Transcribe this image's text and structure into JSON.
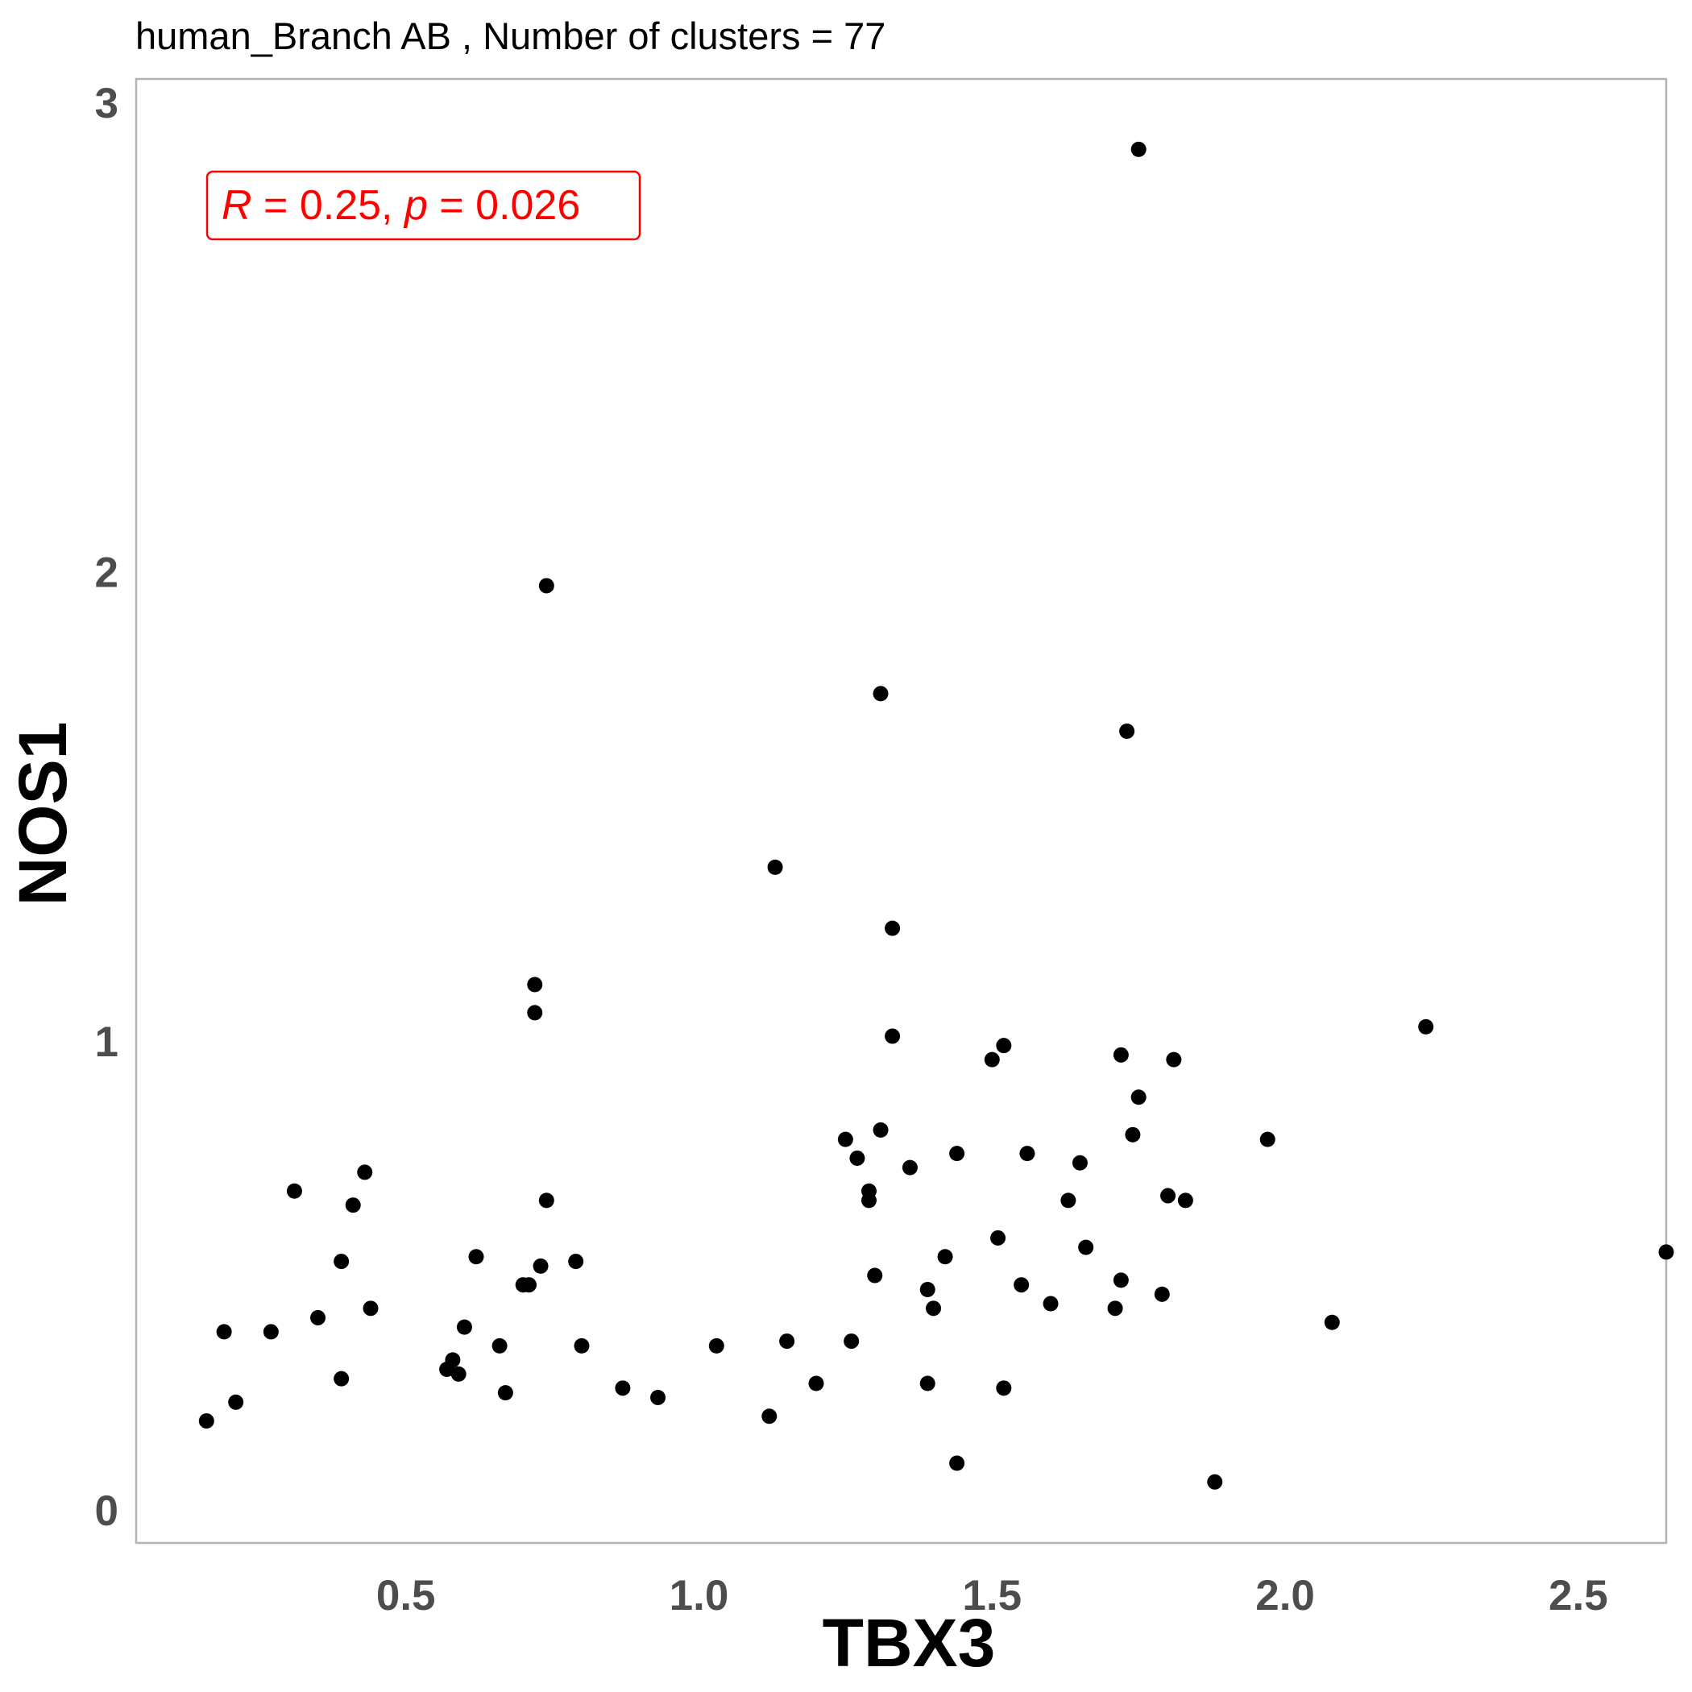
{
  "chart_data": {
    "type": "scatter",
    "title": "human_Branch AB , Number of clusters =  77",
    "xlabel": "TBX3",
    "ylabel": "NOS1",
    "xlim": [
      0.04,
      2.65
    ],
    "ylim": [
      -0.07,
      3.05
    ],
    "xticks": [
      0.5,
      1.0,
      1.5,
      2.0,
      2.5
    ],
    "xtick_labels": [
      "0.5",
      "1.0",
      "1.5",
      "2.0",
      "2.5"
    ],
    "yticks": [
      0,
      1,
      2,
      3
    ],
    "ytick_labels": [
      "0",
      "1",
      "2",
      "3"
    ],
    "grid": false,
    "point_color": "#000000",
    "panel_border_color": "#b3b3b3",
    "annotation": {
      "R_label": "R",
      "R_value": " = 0.25, ",
      "p_label": "p",
      "p_value": " = 0.026",
      "color": "#ff0000"
    },
    "points": [
      {
        "x": 0.16,
        "y": 0.19
      },
      {
        "x": 0.19,
        "y": 0.38
      },
      {
        "x": 0.21,
        "y": 0.23
      },
      {
        "x": 0.27,
        "y": 0.38
      },
      {
        "x": 0.31,
        "y": 0.68
      },
      {
        "x": 0.35,
        "y": 0.41
      },
      {
        "x": 0.39,
        "y": 0.28
      },
      {
        "x": 0.39,
        "y": 0.53
      },
      {
        "x": 0.41,
        "y": 0.65
      },
      {
        "x": 0.43,
        "y": 0.72
      },
      {
        "x": 0.44,
        "y": 0.43
      },
      {
        "x": 0.57,
        "y": 0.3
      },
      {
        "x": 0.58,
        "y": 0.32
      },
      {
        "x": 0.59,
        "y": 0.29
      },
      {
        "x": 0.6,
        "y": 0.39
      },
      {
        "x": 0.62,
        "y": 0.54
      },
      {
        "x": 0.66,
        "y": 0.35
      },
      {
        "x": 0.67,
        "y": 0.25
      },
      {
        "x": 0.7,
        "y": 0.48
      },
      {
        "x": 0.71,
        "y": 0.48
      },
      {
        "x": 0.72,
        "y": 1.12
      },
      {
        "x": 0.72,
        "y": 1.06
      },
      {
        "x": 0.73,
        "y": 0.52
      },
      {
        "x": 0.74,
        "y": 1.97
      },
      {
        "x": 0.74,
        "y": 0.66
      },
      {
        "x": 0.79,
        "y": 0.53
      },
      {
        "x": 0.8,
        "y": 0.35
      },
      {
        "x": 0.87,
        "y": 0.26
      },
      {
        "x": 0.93,
        "y": 0.24
      },
      {
        "x": 1.03,
        "y": 0.35
      },
      {
        "x": 1.12,
        "y": 0.2
      },
      {
        "x": 1.13,
        "y": 1.37
      },
      {
        "x": 1.15,
        "y": 0.36
      },
      {
        "x": 1.2,
        "y": 0.27
      },
      {
        "x": 1.25,
        "y": 0.79
      },
      {
        "x": 1.26,
        "y": 0.36
      },
      {
        "x": 1.27,
        "y": 0.75
      },
      {
        "x": 1.29,
        "y": 0.66
      },
      {
        "x": 1.29,
        "y": 0.68
      },
      {
        "x": 1.3,
        "y": 0.5
      },
      {
        "x": 1.31,
        "y": 1.74
      },
      {
        "x": 1.31,
        "y": 0.81
      },
      {
        "x": 1.33,
        "y": 1.24
      },
      {
        "x": 1.33,
        "y": 1.01
      },
      {
        "x": 1.36,
        "y": 0.73
      },
      {
        "x": 1.39,
        "y": 0.27
      },
      {
        "x": 1.39,
        "y": 0.47
      },
      {
        "x": 1.4,
        "y": 0.43
      },
      {
        "x": 1.42,
        "y": 0.54
      },
      {
        "x": 1.44,
        "y": 0.1
      },
      {
        "x": 1.44,
        "y": 0.76
      },
      {
        "x": 1.5,
        "y": 0.96
      },
      {
        "x": 1.51,
        "y": 0.58
      },
      {
        "x": 1.52,
        "y": 0.26
      },
      {
        "x": 1.52,
        "y": 0.99
      },
      {
        "x": 1.55,
        "y": 0.48
      },
      {
        "x": 1.56,
        "y": 0.76
      },
      {
        "x": 1.6,
        "y": 0.44
      },
      {
        "x": 1.63,
        "y": 0.66
      },
      {
        "x": 1.65,
        "y": 0.74
      },
      {
        "x": 1.66,
        "y": 0.56
      },
      {
        "x": 1.71,
        "y": 0.43
      },
      {
        "x": 1.72,
        "y": 0.97
      },
      {
        "x": 1.72,
        "y": 0.49
      },
      {
        "x": 1.73,
        "y": 1.66
      },
      {
        "x": 1.74,
        "y": 0.8
      },
      {
        "x": 1.75,
        "y": 2.9
      },
      {
        "x": 1.75,
        "y": 0.88
      },
      {
        "x": 1.79,
        "y": 0.46
      },
      {
        "x": 1.8,
        "y": 0.67
      },
      {
        "x": 1.81,
        "y": 0.96
      },
      {
        "x": 1.83,
        "y": 0.66
      },
      {
        "x": 1.88,
        "y": 0.06
      },
      {
        "x": 1.97,
        "y": 0.79
      },
      {
        "x": 2.08,
        "y": 0.4
      },
      {
        "x": 2.24,
        "y": 1.03
      },
      {
        "x": 2.65,
        "y": 0.55
      }
    ]
  }
}
